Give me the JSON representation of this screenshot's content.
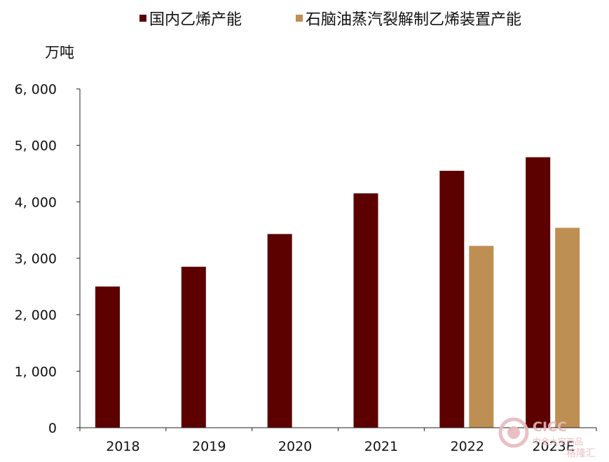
{
  "chart_data": {
    "type": "bar",
    "title": "",
    "xlabel": "",
    "ylabel": "万吨",
    "categories": [
      "2018",
      "2019",
      "2020",
      "2021",
      "2022",
      "2023E"
    ],
    "series": [
      {
        "name": "国内乙烯产能",
        "color": "#5c0000",
        "values": [
          2500,
          2850,
          3430,
          4150,
          4550,
          4790
        ]
      },
      {
        "name": "石脑油蒸汽裂解制乙烯装置产能",
        "color": "#be8f52",
        "values": [
          null,
          null,
          null,
          null,
          3220,
          3540
        ]
      }
    ],
    "ylim": [
      0,
      6000
    ],
    "yticks": [
      "0",
      "1, 000",
      "2, 000",
      "3, 000",
      "4, 000",
      "5, 000",
      "6, 000"
    ],
    "ytick_values": [
      0,
      1000,
      2000,
      3000,
      4000,
      5000,
      6000
    ],
    "grid": false,
    "legend_position": "top"
  },
  "watermark": {
    "line1": "CICC",
    "line2": "中金大宗商品",
    "line3": "格隆汇",
    "color": "#e8b9bd"
  }
}
